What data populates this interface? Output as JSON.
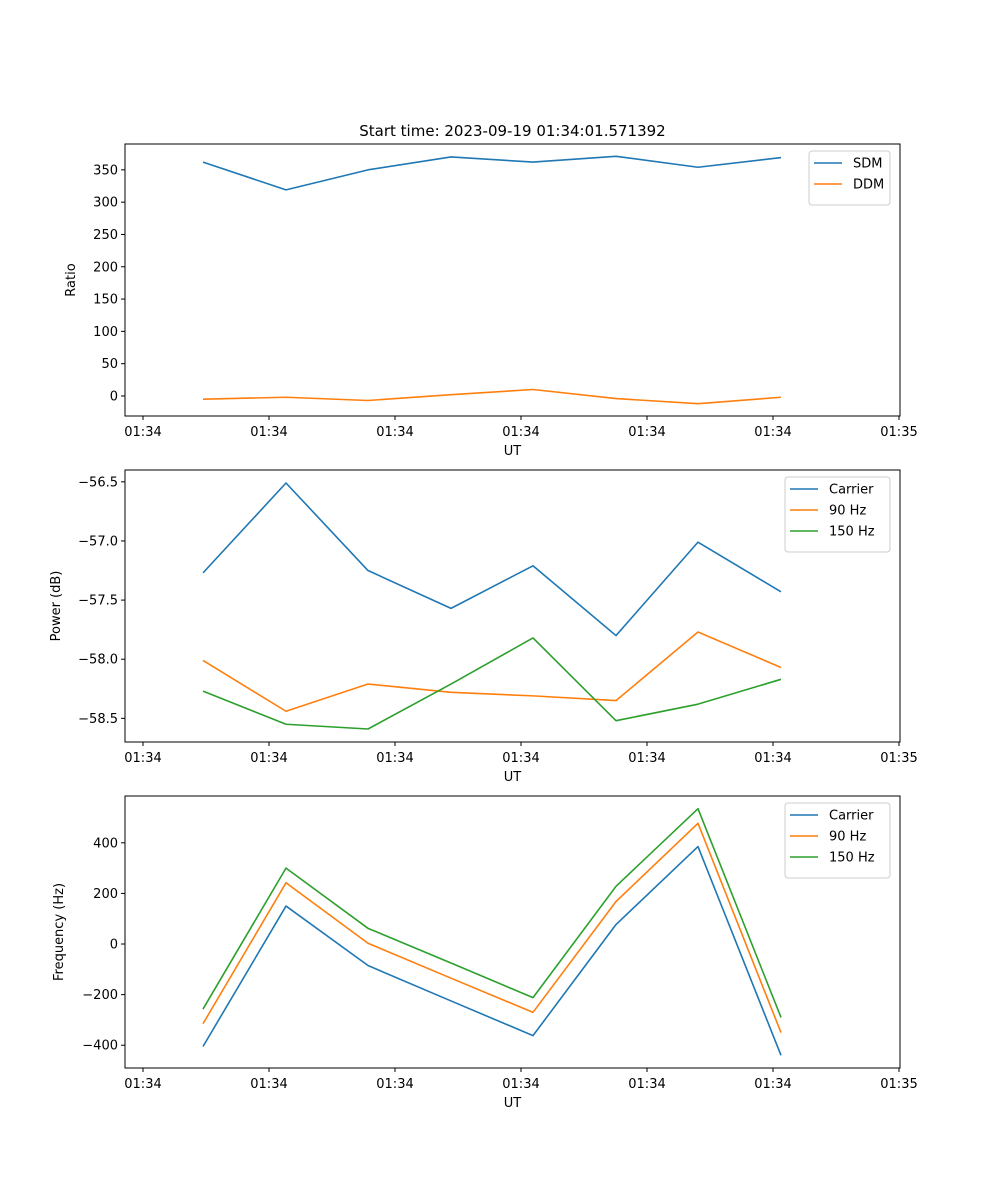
{
  "figure_title": "Start time: 2023-09-19 01:34:01.571392",
  "chart_data": [
    {
      "type": "line",
      "title": "Start time: 2023-09-19 01:34:01.571392",
      "xlabel": "UT",
      "ylabel": "Ratio",
      "x_tick_labels": [
        "01:34",
        "01:34",
        "01:34",
        "01:34",
        "01:34",
        "01:34",
        "01:35"
      ],
      "y_ticks": [
        0,
        50,
        100,
        150,
        200,
        250,
        300,
        350
      ],
      "ylim": [
        -31,
        390
      ],
      "legend_loc": "upper-right",
      "series": [
        {
          "name": "SDM",
          "color": "#1f77b4",
          "values": [
            362,
            319,
            350,
            370,
            362,
            371,
            354,
            369
          ]
        },
        {
          "name": "DDM",
          "color": "#ff7f0e",
          "values": [
            -5,
            -2,
            -7,
            2,
            10,
            -4,
            -12,
            -2
          ]
        }
      ]
    },
    {
      "type": "line",
      "title": "",
      "xlabel": "UT",
      "ylabel": "Power (dB)",
      "x_tick_labels": [
        "01:34",
        "01:34",
        "01:34",
        "01:34",
        "01:34",
        "01:34",
        "01:35"
      ],
      "y_ticks": [
        -58.5,
        -58.0,
        -57.5,
        -57.0,
        -56.5
      ],
      "y_tick_labels": [
        "−58.5",
        "−58.0",
        "−57.5",
        "−57.0",
        "−56.5"
      ],
      "ylim": [
        -58.7,
        -56.4
      ],
      "legend_loc": "upper-right",
      "series": [
        {
          "name": "Carrier",
          "color": "#1f77b4",
          "values": [
            -57.27,
            -56.51,
            -57.25,
            -57.57,
            -57.21,
            -57.8,
            -57.01,
            -57.43
          ]
        },
        {
          "name": "90 Hz",
          "color": "#ff7f0e",
          "values": [
            -58.01,
            -58.44,
            -58.21,
            -58.28,
            -58.31,
            -58.35,
            -57.77,
            -58.07
          ]
        },
        {
          "name": "150 Hz",
          "color": "#2ca02c",
          "values": [
            -58.27,
            -58.55,
            -58.59,
            -58.21,
            -57.82,
            -58.52,
            -58.38,
            -58.17
          ]
        }
      ]
    },
    {
      "type": "line",
      "title": "",
      "xlabel": "UT",
      "ylabel": "Frequency (Hz)",
      "x_tick_labels": [
        "01:34",
        "01:34",
        "01:34",
        "01:34",
        "01:34",
        "01:34",
        "01:35"
      ],
      "y_ticks": [
        -400,
        -200,
        0,
        200,
        400
      ],
      "y_tick_labels": [
        "−400",
        "−200",
        "0",
        "200",
        "400"
      ],
      "ylim": [
        -490,
        585
      ],
      "legend_loc": "upper-right",
      "series": [
        {
          "name": "Carrier",
          "color": "#1f77b4",
          "values": [
            -405,
            150,
            -85,
            -225,
            -362,
            77,
            385,
            -440
          ]
        },
        {
          "name": "90 Hz",
          "color": "#ff7f0e",
          "values": [
            -315,
            242,
            3,
            -135,
            -270,
            168,
            477,
            -350
          ]
        },
        {
          "name": "150 Hz",
          "color": "#2ca02c",
          "values": [
            -257,
            300,
            62,
            -75,
            -212,
            228,
            535,
            -290
          ]
        }
      ]
    }
  ]
}
